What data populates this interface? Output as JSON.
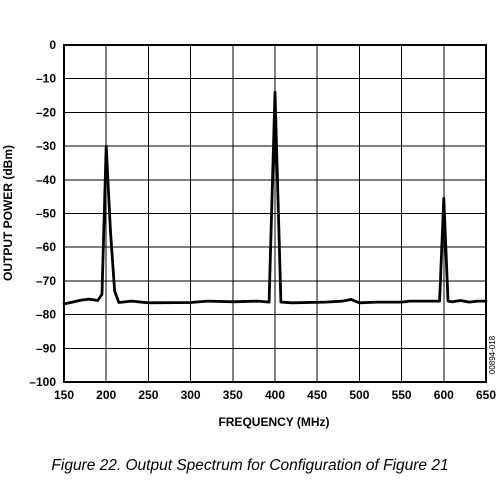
{
  "chart_data": {
    "type": "line",
    "xlabel": "FREQUENCY (MHz)",
    "ylabel": "OUTPUT POWER (dBm)",
    "xlim": [
      150,
      650
    ],
    "ylim": [
      -100,
      0
    ],
    "x_ticks": [
      150,
      200,
      250,
      300,
      350,
      400,
      450,
      500,
      550,
      600,
      650
    ],
    "y_ticks": [
      0,
      -10,
      -20,
      -30,
      -40,
      -50,
      -60,
      -70,
      -80,
      -90,
      -100
    ],
    "x_tick_labels": [
      "150",
      "200",
      "250",
      "300",
      "350",
      "400",
      "450",
      "500",
      "550",
      "600",
      "650"
    ],
    "y_tick_labels": [
      "0",
      "–10",
      "–20",
      "–30",
      "–40",
      "–50",
      "–60",
      "–70",
      "–80",
      "–90",
      "–100"
    ],
    "grid": true,
    "series": [
      {
        "x": [
          150,
          160,
          170,
          180,
          190,
          195,
          200,
          205,
          210,
          215,
          230,
          250,
          300,
          320,
          350,
          380,
          393,
          400,
          407,
          420,
          460,
          480,
          490,
          500,
          520,
          550,
          560,
          585,
          595,
          600,
          605,
          610,
          620,
          630,
          640,
          650
        ],
        "y": [
          -76.8,
          -76.3,
          -75.7,
          -75.4,
          -75.8,
          -74.0,
          -30.0,
          -55.0,
          -73.0,
          -76.4,
          -76.0,
          -76.5,
          -76.4,
          -76.0,
          -76.2,
          -76.0,
          -76.3,
          -14.0,
          -76.3,
          -76.5,
          -76.3,
          -76.0,
          -75.5,
          -76.5,
          -76.3,
          -76.3,
          -76.0,
          -76.0,
          -76.0,
          -45.5,
          -76.0,
          -76.2,
          -75.8,
          -76.3,
          -76.0,
          -76.0
        ]
      }
    ]
  },
  "figure_code": "00894-018",
  "caption": "Figure 22. Output Spectrum for Configuration of Figure 21"
}
